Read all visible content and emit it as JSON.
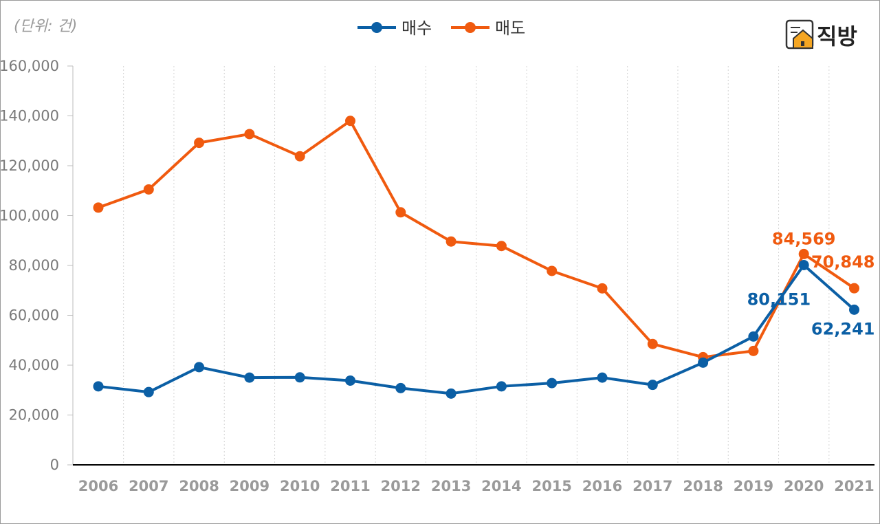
{
  "unit_label": "(단위: 건)",
  "logo": {
    "text": "직방",
    "icon": "house-icon"
  },
  "colors": {
    "buy": "#0b5fa5",
    "sell": "#f05a0f"
  },
  "chart_data": {
    "type": "line",
    "x": [
      "2006",
      "2007",
      "2008",
      "2009",
      "2010",
      "2011",
      "2012",
      "2013",
      "2014",
      "2015",
      "2016",
      "2017",
      "2018",
      "2019",
      "2020",
      "2021"
    ],
    "ylim": [
      0,
      160000
    ],
    "yticks": [
      0,
      20000,
      40000,
      60000,
      80000,
      100000,
      120000,
      140000,
      160000
    ],
    "ytick_labels": [
      "0",
      "20,000",
      "40,000",
      "60,000",
      "80,000",
      "100,000",
      "120,000",
      "140,000",
      "160,000"
    ],
    "grid": "vertical dotted",
    "legend": "top-center",
    "series": [
      {
        "name": "매수",
        "color": "#0b5fa5",
        "values": [
          31500,
          29200,
          39200,
          35000,
          35100,
          33800,
          30800,
          28600,
          31500,
          32800,
          35000,
          32100,
          41000,
          51500,
          80151,
          62241
        ]
      },
      {
        "name": "매도",
        "color": "#f05a0f",
        "values": [
          103200,
          110500,
          129200,
          132700,
          123800,
          138000,
          101300,
          89600,
          87800,
          77800,
          70800,
          48500,
          43200,
          45700,
          84569,
          70848
        ]
      }
    ],
    "data_labels": [
      {
        "series": 1,
        "index": 14,
        "text": "84,569"
      },
      {
        "series": 1,
        "index": 15,
        "text": "70,848"
      },
      {
        "series": 0,
        "index": 14,
        "text": "80,151"
      },
      {
        "series": 0,
        "index": 15,
        "text": "62,241"
      }
    ]
  }
}
